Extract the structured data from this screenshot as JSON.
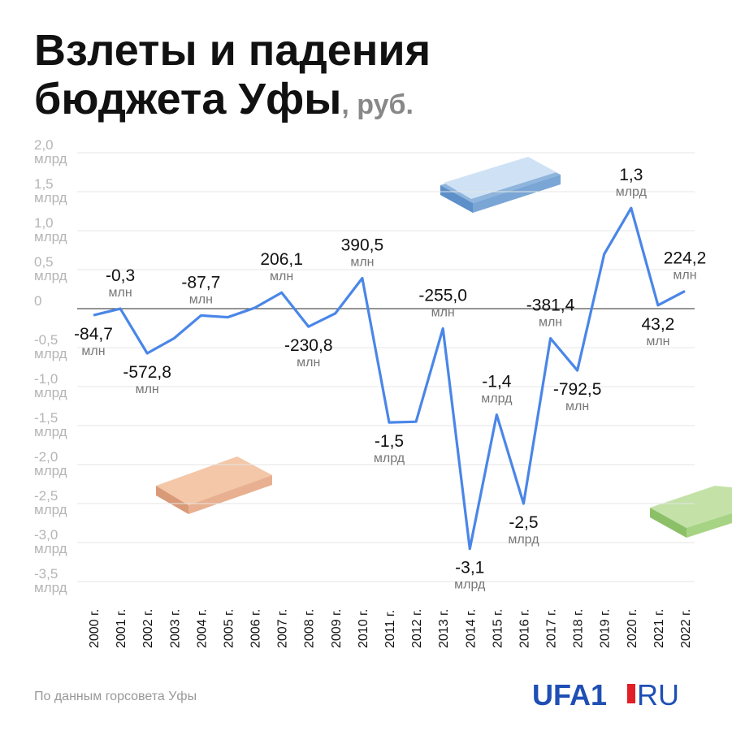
{
  "chart_data": {
    "type": "line",
    "title": "Взлеты и падения бюджета Уфы",
    "subtitle": ", руб.",
    "source": "По данным горсовета Уфы",
    "logo": {
      "brand": "UFA1",
      "domain": "RU"
    },
    "categories": [
      "2000 г.",
      "2001 г.",
      "2002 г.",
      "2003 г.",
      "2004 г.",
      "2005 г.",
      "2006 г.",
      "2007 г.",
      "2008 г.",
      "2009 г.",
      "2010 г.",
      "2011 г.",
      "2012 г.",
      "2013 г.",
      "2014 г.",
      "2015 г.",
      "2016 г.",
      "2017 г.",
      "2018 г.",
      "2019 г.",
      "2020 г.",
      "2021 г.",
      "2022 г."
    ],
    "series": [
      {
        "name": "Бюджет",
        "color": "#4a86e8",
        "values": [
          -0.0847,
          -0.0003,
          -0.5728,
          -0.38,
          -0.0877,
          -0.11,
          0.01,
          0.2061,
          -0.2308,
          -0.06,
          0.3905,
          -1.46,
          -1.45,
          -0.255,
          -3.08,
          -1.36,
          -2.5,
          -0.3814,
          -0.7925,
          0.7,
          1.29,
          0.0432,
          0.2242
        ],
        "value_labels": [
          "-84,7 млн",
          "-0,3 млн",
          "-572,8 млн",
          null,
          "-87,7 млн",
          null,
          null,
          "206,1 млн",
          "-230,8 млн",
          null,
          "390,5 млн",
          "-1,5 млрд",
          null,
          "-255,0 млн",
          "-3,1 млрд",
          "-1,4 млрд",
          "-2,5 млрд",
          "-381,4 млн",
          "-792,5 млн",
          null,
          "1,3 млрд",
          "43,2 млн",
          "224,2 млн"
        ]
      }
    ],
    "ylim": [
      -3.5,
      2.0
    ],
    "yticks": [
      {
        "value": 2.0,
        "label": "2,0 млрд"
      },
      {
        "value": 1.5,
        "label": "1,5 млрд"
      },
      {
        "value": 1.0,
        "label": "1,0 млрд"
      },
      {
        "value": 0.5,
        "label": "0,5 млрд"
      },
      0,
      {
        "value": -0.5,
        "label": "-0,5 млрд"
      },
      {
        "value": -1.0,
        "label": "-1,0 млрд"
      },
      {
        "value": -1.5,
        "label": "-1,5 млрд"
      },
      {
        "value": -2.0,
        "label": "-2,0 млрд"
      },
      {
        "value": -2.5,
        "label": "-2,5 млрд"
      },
      {
        "value": -3.0,
        "label": "-3,0 млрд"
      },
      {
        "value": -3.5,
        "label": "-3,5 млрд"
      }
    ],
    "grid": true
  }
}
